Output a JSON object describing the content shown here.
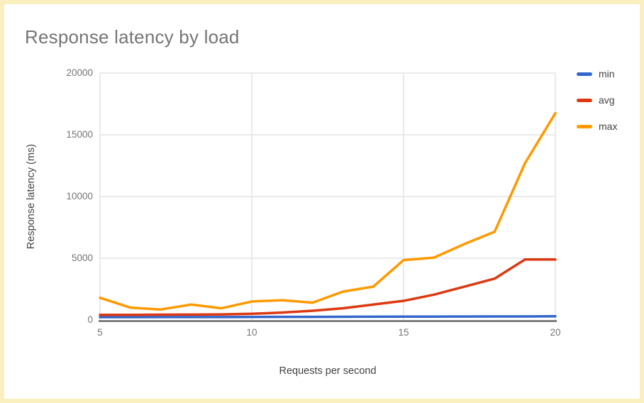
{
  "chart_data": {
    "type": "line",
    "title": "Response latency by load",
    "xlabel": "Requests per second",
    "ylabel": "Response latency (ms)",
    "x": [
      5,
      6,
      7,
      8,
      9,
      10,
      11,
      12,
      13,
      14,
      15,
      16,
      17,
      18,
      19,
      20
    ],
    "series": [
      {
        "name": "min",
        "color": "#3366CC",
        "values": [
          230,
          230,
          235,
          240,
          240,
          245,
          250,
          255,
          260,
          265,
          270,
          275,
          280,
          285,
          290,
          300
        ]
      },
      {
        "name": "avg",
        "color": "#DC3912",
        "values": [
          420,
          420,
          430,
          440,
          450,
          500,
          600,
          750,
          950,
          1250,
          1550,
          2050,
          2700,
          3350,
          4900,
          4900
        ]
      },
      {
        "name": "max",
        "color": "#FF9900",
        "values": [
          1800,
          1000,
          850,
          1250,
          950,
          1500,
          1600,
          1400,
          2300,
          2700,
          4850,
          5050,
          6150,
          7150,
          12700,
          16750
        ]
      }
    ],
    "xlim": [
      5,
      20
    ],
    "ylim": [
      0,
      20000
    ],
    "xticks": [
      5,
      10,
      15,
      20
    ],
    "yticks": [
      0,
      5000,
      10000,
      15000,
      20000
    ],
    "xtick_labels": [
      "5",
      "10",
      "15",
      "20"
    ],
    "ytick_labels": [
      "0",
      "5000",
      "10000",
      "15000",
      "20000"
    ],
    "grid": true,
    "legend_position": "right"
  },
  "styles": {
    "card_border": "#FAEFBE",
    "background": "#FFFFFF",
    "title_color": "#757575",
    "axis_title_color": "#424242",
    "tick_label_color": "#757575",
    "gridline_color": "#E3E3E3",
    "baseline_color": "#454545"
  }
}
